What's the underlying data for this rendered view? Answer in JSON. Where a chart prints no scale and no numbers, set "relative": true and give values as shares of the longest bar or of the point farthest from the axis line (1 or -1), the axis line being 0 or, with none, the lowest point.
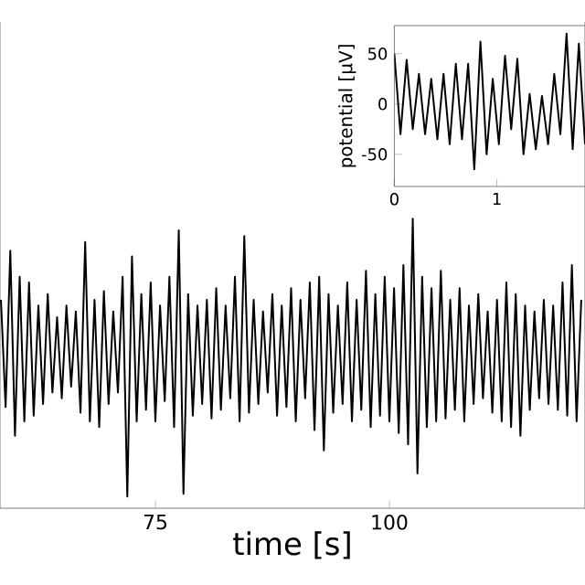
{
  "chart_data": [
    {
      "type": "line",
      "relative": true,
      "tick_labels": "x",
      "color": "#000000",
      "xlabel": "time [s]",
      "xlim": [
        58.4,
        120.9
      ],
      "xticks": [
        75,
        100
      ],
      "x": [
        58.5,
        59,
        59.5,
        60,
        60.5,
        61,
        61.5,
        62,
        62.5,
        63,
        63.5,
        64,
        64.5,
        65,
        65.5,
        66,
        66.5,
        67,
        67.5,
        68,
        68.5,
        69,
        69.5,
        70,
        70.5,
        71,
        71.5,
        72,
        72.5,
        73,
        73.5,
        74,
        74.5,
        75,
        75.5,
        76,
        76.5,
        77,
        77.5,
        78,
        78.5,
        79,
        79.5,
        80,
        80.5,
        81,
        81.5,
        82,
        82.5,
        83,
        83.5,
        84,
        84.5,
        85,
        85.5,
        86,
        86.5,
        87,
        87.5,
        88,
        88.5,
        89,
        89.5,
        90,
        90.5,
        91,
        91.5,
        92,
        92.5,
        93,
        93.5,
        94,
        94.5,
        95,
        95.5,
        96,
        96.5,
        97,
        97.5,
        98,
        98.5,
        99,
        99.5,
        100,
        100.5,
        101,
        101.5,
        102,
        102.5,
        103,
        103.5,
        104,
        104.5,
        105,
        105.5,
        106,
        106.5,
        107,
        107.5,
        108,
        108.5,
        109,
        109.5,
        110,
        110.5,
        111,
        111.5,
        112,
        112.5,
        113,
        113.5,
        114,
        114.5,
        115,
        115.5,
        116,
        116.5,
        117,
        117.5,
        118,
        118.5,
        119,
        119.5,
        120,
        120.5
      ],
      "values": [
        0.72,
        0.35,
        0.89,
        0.25,
        0.8,
        0.3,
        0.78,
        0.32,
        0.7,
        0.36,
        0.74,
        0.4,
        0.66,
        0.38,
        0.7,
        0.42,
        0.68,
        0.33,
        0.92,
        0.3,
        0.72,
        0.28,
        0.75,
        0.36,
        0.68,
        0.4,
        0.8,
        0.04,
        0.87,
        0.3,
        0.74,
        0.34,
        0.78,
        0.3,
        0.7,
        0.37,
        0.8,
        0.28,
        0.96,
        0.05,
        0.74,
        0.32,
        0.7,
        0.36,
        0.72,
        0.31,
        0.76,
        0.34,
        0.7,
        0.38,
        0.8,
        0.3,
        0.94,
        0.33,
        0.72,
        0.36,
        0.68,
        0.4,
        0.74,
        0.32,
        0.7,
        0.35,
        0.76,
        0.3,
        0.72,
        0.38,
        0.78,
        0.27,
        0.8,
        0.2,
        0.74,
        0.33,
        0.7,
        0.36,
        0.78,
        0.3,
        0.72,
        0.34,
        0.82,
        0.28,
        0.74,
        0.32,
        0.8,
        0.3,
        0.76,
        0.26,
        0.84,
        0.22,
        1.0,
        0.12,
        0.8,
        0.28,
        0.76,
        0.3,
        0.82,
        0.31,
        0.72,
        0.34,
        0.76,
        0.3,
        0.7,
        0.36,
        0.74,
        0.38,
        0.68,
        0.33,
        0.72,
        0.3,
        0.78,
        0.28,
        0.74,
        0.25,
        0.7,
        0.34,
        0.68,
        0.38,
        0.72,
        0.36,
        0.7,
        0.34,
        0.78,
        0.32,
        0.84,
        0.3,
        0.72
      ]
    },
    {
      "type": "line",
      "color": "#000000",
      "ylabel": "potential [μV]",
      "xlim": [
        0,
        1.86
      ],
      "xticks": [
        0,
        1
      ],
      "ylim": [
        -82,
        78
      ],
      "yticks": [
        -50,
        0,
        50
      ],
      "x": [
        0,
        0.06,
        0.12,
        0.18,
        0.24,
        0.3,
        0.36,
        0.42,
        0.48,
        0.54,
        0.6,
        0.66,
        0.72,
        0.78,
        0.84,
        0.9,
        0.96,
        1.02,
        1.08,
        1.14,
        1.2,
        1.26,
        1.32,
        1.38,
        1.44,
        1.5,
        1.56,
        1.62,
        1.68,
        1.74,
        1.8,
        1.86
      ],
      "values": [
        50,
        -30,
        44,
        -25,
        30,
        -30,
        25,
        -35,
        30,
        -40,
        40,
        -35,
        40,
        -65,
        62,
        -50,
        25,
        -40,
        48,
        -25,
        45,
        -50,
        10,
        -45,
        8,
        -40,
        30,
        -30,
        70,
        -45,
        60,
        -40
      ]
    }
  ]
}
